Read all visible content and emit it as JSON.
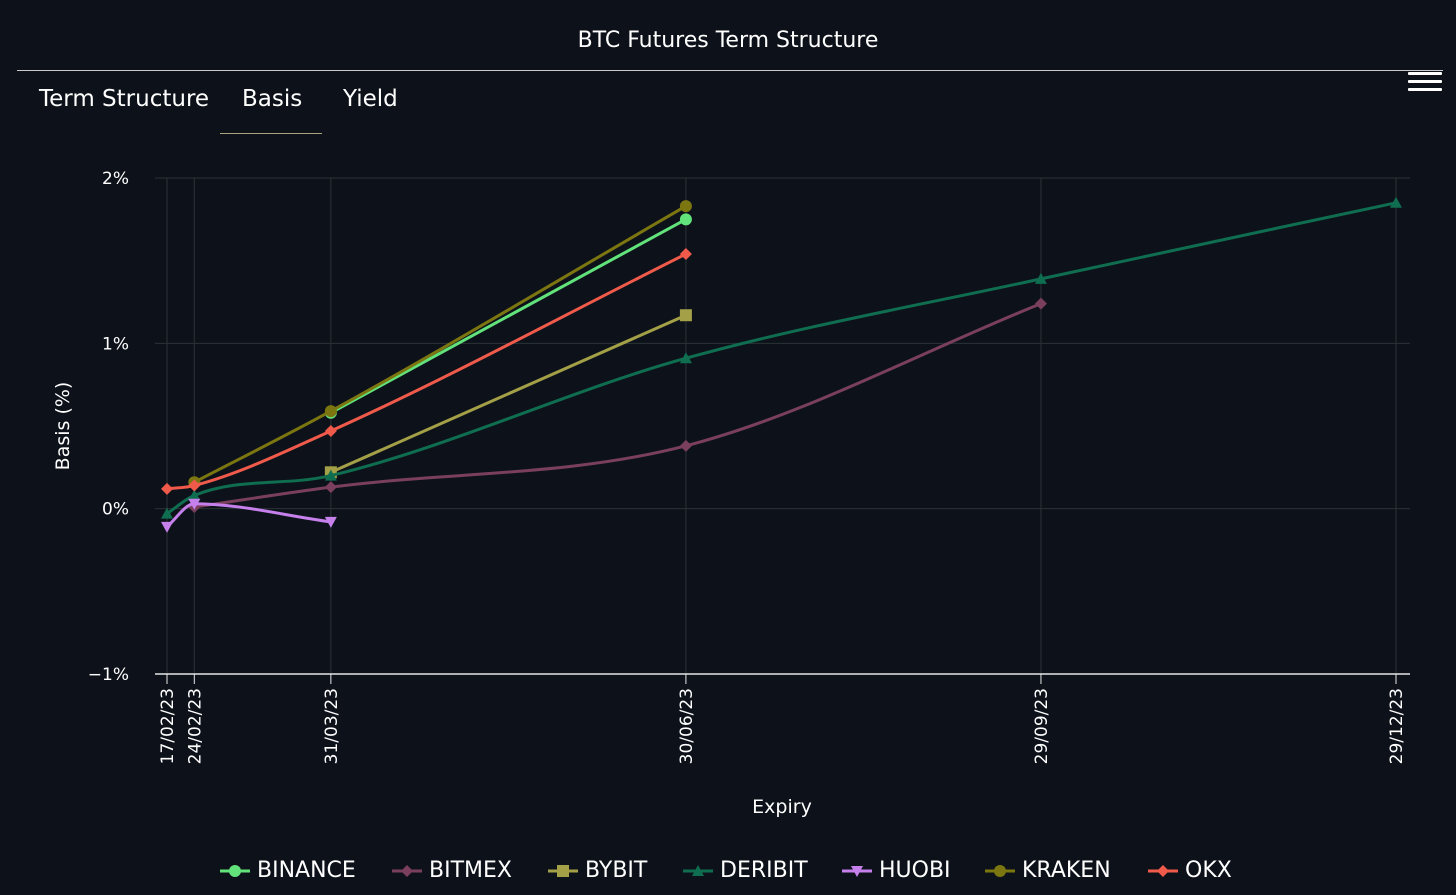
{
  "header": {
    "title": "BTC Futures Term Structure",
    "menu_icon": "hamburger-menu-icon"
  },
  "tabs": [
    {
      "label": "Term Structure",
      "active": false
    },
    {
      "label": "Basis",
      "active": true
    },
    {
      "label": "Yield",
      "active": false
    }
  ],
  "colors": {
    "background": "#0d121a",
    "grid": "#2b3236",
    "axis": "#e6e6e6",
    "tab_underline": "#a7a37a"
  },
  "chart_data": {
    "type": "line",
    "title": "",
    "xlabel": "Expiry",
    "ylabel": "Basis (%)",
    "x_tick_labels": [
      "17/02/23",
      "24/02/23",
      "31/03/23",
      "30/06/23",
      "29/09/23",
      "29/12/23"
    ],
    "x_tick_dates": [
      "2023-02-17",
      "2023-02-24",
      "2023-03-31",
      "2023-06-30",
      "2023-09-29",
      "2023-12-29"
    ],
    "xlim": [
      "2023-02-17",
      "2023-12-29"
    ],
    "y_ticks": [
      -1,
      0,
      1,
      2
    ],
    "y_tick_labels": [
      "−1%",
      "0%",
      "1%",
      "2%"
    ],
    "ylim": [
      -1,
      2
    ],
    "grid": true,
    "legend_position": "bottom",
    "series": [
      {
        "name": "BINANCE",
        "color": "#62e27b",
        "marker": "circle",
        "x": [
          "2023-03-31",
          "2023-06-30"
        ],
        "y": [
          0.58,
          1.75
        ]
      },
      {
        "name": "BITMEX",
        "color": "#7a3f5c",
        "marker": "diamond",
        "x": [
          "2023-02-24",
          "2023-03-31",
          "2023-06-30",
          "2023-09-29"
        ],
        "y": [
          0.01,
          0.13,
          0.38,
          1.24
        ]
      },
      {
        "name": "BYBIT",
        "color": "#a3a047",
        "marker": "square",
        "x": [
          "2023-03-31",
          "2023-06-30"
        ],
        "y": [
          0.22,
          1.17
        ]
      },
      {
        "name": "DERIBIT",
        "color": "#0f6d50",
        "marker": "triangle",
        "x": [
          "2023-02-17",
          "2023-02-24",
          "2023-03-31",
          "2023-06-30",
          "2023-09-29",
          "2023-12-29"
        ],
        "y": [
          -0.03,
          0.08,
          0.2,
          0.91,
          1.39,
          1.85
        ]
      },
      {
        "name": "HUOBI",
        "color": "#c580ec",
        "marker": "triangle-down",
        "x": [
          "2023-02-17",
          "2023-02-24",
          "2023-03-31"
        ],
        "y": [
          -0.11,
          0.03,
          -0.08
        ]
      },
      {
        "name": "KRAKEN",
        "color": "#7c7611",
        "marker": "circle",
        "x": [
          "2023-02-24",
          "2023-03-31",
          "2023-06-30"
        ],
        "y": [
          0.16,
          0.59,
          1.83
        ]
      },
      {
        "name": "OKX",
        "color": "#f05a4b",
        "marker": "diamond",
        "x": [
          "2023-02-17",
          "2023-02-24",
          "2023-03-31",
          "2023-06-30"
        ],
        "y": [
          0.12,
          0.14,
          0.47,
          1.54
        ]
      }
    ]
  }
}
